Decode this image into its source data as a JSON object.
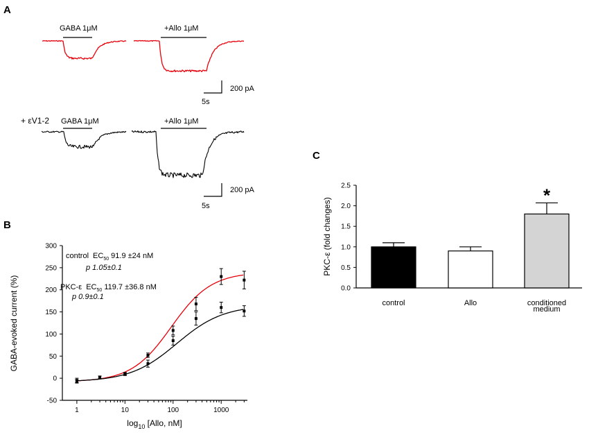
{
  "panels": {
    "a": {
      "letter": "A"
    },
    "b": {
      "letter": "B"
    },
    "c": {
      "letter": "C"
    }
  },
  "colors": {
    "control": "#e8000b",
    "pkc": "#000000",
    "conditioned": "#d4d4d4"
  },
  "traces": {
    "row1": {
      "label1": "GABA 1μM",
      "label2": "+Allo 1μM",
      "scale_y": "200 pA",
      "scale_x": "5s",
      "color": "#e8000b",
      "amp1": 0.35,
      "amp2": 0.6
    },
    "row2": {
      "prefix": "+ εV1-2",
      "label1": "GABA 1μM",
      "label2": "+Allo 1μM",
      "scale_y": "200 pA",
      "scale_x": "5s",
      "color": "#000000",
      "amp1": 0.3,
      "amp2": 0.87
    }
  },
  "chart_data": [
    {
      "type": "line",
      "panel": "B",
      "xlabel_prefix": "log",
      "xlabel_sub": "10",
      "xlabel_rest": " [Allo, nM]",
      "ylabel": "GABA-evoked current (%)",
      "xscale": "log",
      "xlim": [
        0.5,
        3500
      ],
      "ylim": [
        -50,
        300
      ],
      "xticks": [
        1,
        10,
        100,
        1000
      ],
      "yticks": [
        -50,
        0,
        50,
        100,
        150,
        200,
        250,
        300
      ],
      "annotations": {
        "control_name": "control",
        "control_ec": "EC",
        "control_ec_sub": "50",
        "control_value": " 91.9 ±24 nM",
        "control_p": "p 1.05±0.1",
        "pkc_name": "PKC-ε",
        "pkc_ec": "EC",
        "pkc_ec_sub": "50",
        "pkc_value": " 119.7 ±36.8 nM",
        "pkc_p": "p 0.9±0.1"
      },
      "series": [
        {
          "name": "control",
          "color": "#e8000b",
          "top": 240,
          "bottom": -8,
          "ec50": 91.9,
          "hill": 1.05,
          "x": [
            1,
            3,
            10,
            30,
            100,
            300,
            1000,
            3000
          ],
          "y": [
            -7,
            2,
            10,
            52,
            108,
            168,
            230,
            222
          ],
          "err": [
            4,
            3,
            3,
            5,
            10,
            15,
            18,
            20
          ]
        },
        {
          "name": "PKC-ε",
          "color": "#000000",
          "top": 165,
          "bottom": -8,
          "ec50": 119.7,
          "hill": 0.9,
          "x": [
            1,
            3,
            10,
            30,
            100,
            300,
            1000,
            3000
          ],
          "y": [
            -5,
            2,
            9,
            33,
            85,
            135,
            160,
            152
          ],
          "err": [
            5,
            3,
            3,
            8,
            10,
            15,
            12,
            12
          ]
        }
      ]
    },
    {
      "type": "bar",
      "panel": "C",
      "ylabel": "PKC-ε (fold changes)",
      "ylim": [
        0,
        2.5
      ],
      "yticks": [
        0.0,
        0.5,
        1.0,
        1.5,
        2.0,
        2.5
      ],
      "categories": [
        "control",
        "Allo",
        "conditioned medium"
      ],
      "category_lines": [
        [
          "control"
        ],
        [
          "Allo"
        ],
        [
          "conditioned",
          "medium"
        ]
      ],
      "values": [
        1.0,
        0.9,
        1.8
      ],
      "errors": [
        0.1,
        0.1,
        0.27
      ],
      "fills": [
        "#000000",
        "#ffffff",
        "#d4d4d4"
      ],
      "significance": [
        "",
        "",
        "*"
      ]
    }
  ]
}
